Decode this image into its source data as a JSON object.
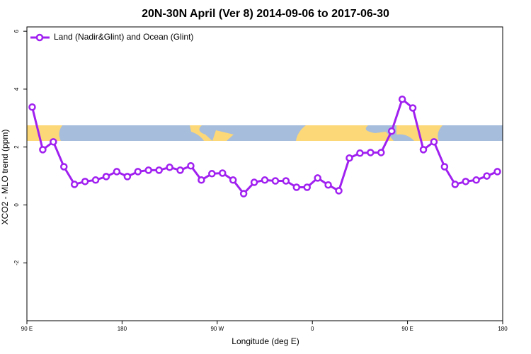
{
  "chart_data": {
    "type": "line",
    "title": "20N-30N April (Ver 8)   2014-09-06 to 2017-06-30",
    "x_label": "Longitude (deg E)",
    "y_label": "XCO2 - MLO trend (ppm)",
    "xlim": [
      90,
      540
    ],
    "ylim": [
      -4,
      6.15
    ],
    "xticks": [
      {
        "value": 90,
        "label": "90 E"
      },
      180,
      {
        "value": 270,
        "label": "90 W"
      },
      {
        "value": 360,
        "label": "0"
      },
      {
        "value": 450,
        "label": "90 E"
      },
      {
        "value": 540,
        "label": "180"
      }
    ],
    "yticks": [
      -2,
      0,
      2,
      4,
      6
    ],
    "legend": "top-left",
    "series": [
      {
        "name": "Land (Nadir&Glint) and Ocean (Glint)",
        "color": "#a020f0",
        "x": [
          95,
          105,
          115,
          125,
          135,
          145,
          155,
          165,
          175,
          185,
          195,
          205,
          215,
          225,
          235,
          245,
          255,
          265,
          275,
          285,
          295,
          305,
          315,
          325,
          335,
          345,
          355,
          365,
          375,
          385,
          395,
          405,
          415,
          425,
          435,
          445,
          455,
          465,
          475,
          485,
          495,
          505,
          515,
          525,
          535
        ],
        "values": [
          3.38,
          1.91,
          2.18,
          1.32,
          0.71,
          0.81,
          0.86,
          0.98,
          1.15,
          0.98,
          1.15,
          1.2,
          1.2,
          1.3,
          1.2,
          1.35,
          0.86,
          1.08,
          1.1,
          0.86,
          0.39,
          0.78,
          0.86,
          0.83,
          0.83,
          0.61,
          0.61,
          0.93,
          0.69,
          0.49,
          1.62,
          1.79,
          1.81,
          1.81,
          2.55,
          3.65,
          3.35,
          1.91,
          2.18,
          1.32,
          0.71,
          0.81,
          0.86,
          1.0,
          1.15
        ]
      }
    ]
  }
}
